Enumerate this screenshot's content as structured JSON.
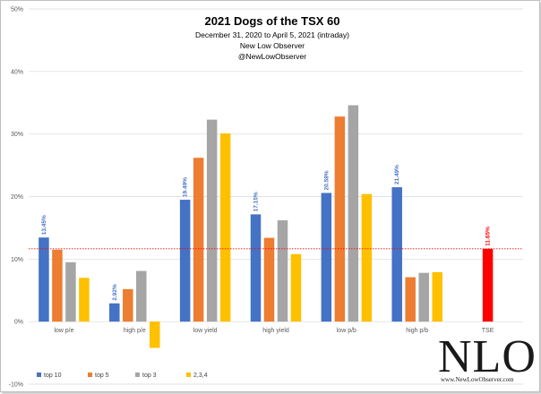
{
  "chart_data": {
    "type": "bar",
    "title": "2021 Dogs of the TSX 60",
    "subtitle_lines": [
      "December 31, 2020 to April 5, 2021 (intraday)",
      "New Low Observer",
      "@NewLowObserver"
    ],
    "categories": [
      "low p/e",
      "high p/e",
      "low yield",
      "high yield",
      "low p/b",
      "high p/b",
      "TSE"
    ],
    "ylim": [
      -10,
      50
    ],
    "yticks": [
      "-10%",
      "0%",
      "10%",
      "20%",
      "30%",
      "40%",
      "50%"
    ],
    "grid": true,
    "legend_position": "bottom-left",
    "series": [
      {
        "name": "top 10",
        "color": "#4472c4",
        "values": [
          13.45,
          2.92,
          19.49,
          17.15,
          20.58,
          21.49,
          null
        ]
      },
      {
        "name": "top 5",
        "color": "#ed7d31",
        "values": [
          11.5,
          5.2,
          26.2,
          13.4,
          32.8,
          7.1,
          null
        ]
      },
      {
        "name": "top 3",
        "color": "#a5a5a5",
        "values": [
          9.5,
          8.1,
          32.3,
          16.2,
          34.6,
          7.8,
          null
        ]
      },
      {
        "name": "2,3,4",
        "color": "#ffc000",
        "values": [
          7.0,
          -4.2,
          30.1,
          10.8,
          20.4,
          7.9,
          null
        ]
      }
    ],
    "tse": {
      "value": 11.65,
      "color": "#ff0000"
    },
    "reference_line": {
      "value": 11.65,
      "color": "#ff0000",
      "style": "dotted"
    },
    "data_labels": [
      "13.45%",
      "2.92%",
      "19.49%",
      "17.15%",
      "20.58%",
      "21.49%",
      "11.65%"
    ]
  },
  "watermark": {
    "logo_text": "NLO",
    "url_text": "www.NewLowObserver.com"
  }
}
